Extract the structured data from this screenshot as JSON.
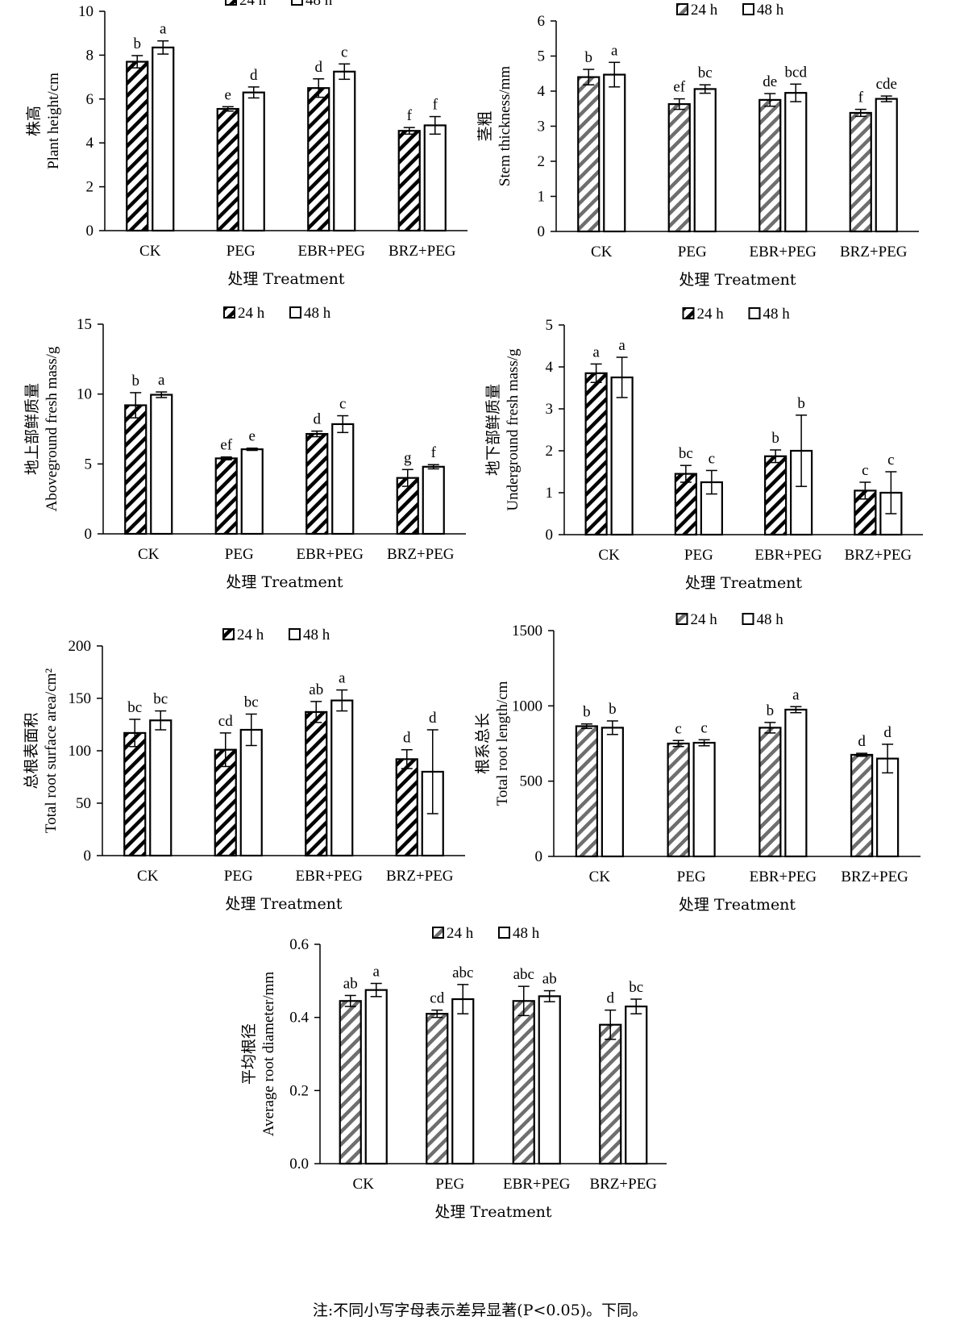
{
  "legend": {
    "series1": "24 h",
    "series2": "48 h"
  },
  "colors": {
    "bar1_stroke": "#000000",
    "bar1_stroke_gray": "#6e6e6e",
    "bar2_fill": "#ffffff"
  },
  "note": "注:不同小写字母表示差异显著(P<0.05)。下同。",
  "chart_data": [
    {
      "id": "plant-height",
      "type": "bar",
      "title": "",
      "ylabel_cn": "株高",
      "ylabel_en": "Plant height/cm",
      "xlabel": "处理 Treatment",
      "categories": [
        "CK",
        "PEG",
        "EBR+PEG",
        "BRZ+PEG"
      ],
      "ylim": [
        0,
        10
      ],
      "yticks": [
        "0",
        "2",
        "4",
        "6",
        "8",
        "10"
      ],
      "hatch": "black",
      "series": [
        {
          "name": "24 h",
          "values": [
            7.7,
            5.55,
            6.5,
            4.55
          ],
          "errors": [
            0.28,
            0.1,
            0.42,
            0.15
          ],
          "labels": [
            "b",
            "e",
            "d",
            "f"
          ]
        },
        {
          "name": "48 h",
          "values": [
            8.35,
            6.3,
            7.25,
            4.8
          ],
          "errors": [
            0.3,
            0.25,
            0.35,
            0.4
          ],
          "labels": [
            "a",
            "d",
            "c",
            "f"
          ]
        }
      ]
    },
    {
      "id": "stem-thickness",
      "type": "bar",
      "title": "",
      "ylabel_cn": "茎粗",
      "ylabel_en": "Stem thickness/mm",
      "xlabel": "处理 Treatment",
      "categories": [
        "CK",
        "PEG",
        "EBR+PEG",
        "BRZ+PEG"
      ],
      "ylim": [
        0,
        6
      ],
      "yticks": [
        "0",
        "1",
        "2",
        "3",
        "4",
        "5",
        "6"
      ],
      "hatch": "gray",
      "series": [
        {
          "name": "24 h",
          "values": [
            4.4,
            3.63,
            3.75,
            3.38
          ],
          "errors": [
            0.22,
            0.15,
            0.18,
            0.1
          ],
          "labels": [
            "b",
            "ef",
            "de",
            "f"
          ]
        },
        {
          "name": "48 h",
          "values": [
            4.47,
            4.06,
            3.95,
            3.78
          ],
          "errors": [
            0.35,
            0.12,
            0.25,
            0.08
          ],
          "labels": [
            "a",
            "bc",
            "bcd",
            "cde"
          ]
        }
      ]
    },
    {
      "id": "aboveground-fresh-mass",
      "type": "bar",
      "title": "",
      "ylabel_cn": "地上部鲜质量",
      "ylabel_en": "Aboveground fresh mass/g",
      "xlabel": "处理 Treatment",
      "categories": [
        "CK",
        "PEG",
        "EBR+PEG",
        "BRZ+PEG"
      ],
      "ylim": [
        0,
        15
      ],
      "yticks": [
        "0",
        "5",
        "10",
        "15"
      ],
      "hatch": "black",
      "series": [
        {
          "name": "24 h",
          "values": [
            9.2,
            5.4,
            7.15,
            4.0
          ],
          "errors": [
            0.9,
            0.1,
            0.2,
            0.6
          ],
          "labels": [
            "b",
            "ef",
            "d",
            "g"
          ]
        },
        {
          "name": "48 h",
          "values": [
            9.95,
            6.05,
            7.85,
            4.8
          ],
          "errors": [
            0.2,
            0.08,
            0.6,
            0.15
          ],
          "labels": [
            "a",
            "e",
            "c",
            "f"
          ]
        }
      ]
    },
    {
      "id": "underground-fresh-mass",
      "type": "bar",
      "title": "",
      "ylabel_cn": "地下部鲜质量",
      "ylabel_en": "Underground fresh mass/g",
      "xlabel": "处理 Treatment",
      "categories": [
        "CK",
        "PEG",
        "EBR+PEG",
        "BRZ+PEG"
      ],
      "ylim": [
        0,
        5
      ],
      "yticks": [
        "0",
        "1",
        "2",
        "3",
        "4",
        "5"
      ],
      "hatch": "black",
      "series": [
        {
          "name": "24 h",
          "values": [
            3.85,
            1.45,
            1.87,
            1.05
          ],
          "errors": [
            0.22,
            0.2,
            0.15,
            0.2
          ],
          "labels": [
            "a",
            "bc",
            "b",
            "c"
          ]
        },
        {
          "name": "48 h",
          "values": [
            3.75,
            1.25,
            2.0,
            1.0
          ],
          "errors": [
            0.48,
            0.28,
            0.85,
            0.5
          ],
          "labels": [
            "a",
            "c",
            "b",
            "c"
          ]
        }
      ]
    },
    {
      "id": "total-root-surface-area",
      "type": "bar",
      "title": "",
      "ylabel_cn": "总根表面积",
      "ylabel_en": "Total root surface area/cm²",
      "xlabel": "处理 Treatment",
      "categories": [
        "CK",
        "PEG",
        "EBR+PEG",
        "BRZ+PEG"
      ],
      "ylim": [
        0,
        200
      ],
      "yticks": [
        "0",
        "50",
        "100",
        "150",
        "200"
      ],
      "hatch": "black",
      "series": [
        {
          "name": "24 h",
          "values": [
            117,
            101,
            137,
            92
          ],
          "errors": [
            13,
            16,
            10,
            9
          ],
          "labels": [
            "bc",
            "cd",
            "ab",
            "d"
          ]
        },
        {
          "name": "48 h",
          "values": [
            129,
            120,
            148,
            80
          ],
          "errors": [
            9,
            15,
            10,
            40
          ],
          "labels": [
            "bc",
            "bc",
            "a",
            "d"
          ]
        }
      ]
    },
    {
      "id": "total-root-length",
      "type": "bar",
      "title": "",
      "ylabel_cn": "根系总长",
      "ylabel_en": "Total root length/cm",
      "xlabel": "处理 Treatment",
      "categories": [
        "CK",
        "PEG",
        "EBR+PEG",
        "BRZ+PEG"
      ],
      "ylim": [
        0,
        1500
      ],
      "yticks": [
        "0",
        "500",
        "1000",
        "1500"
      ],
      "hatch": "gray",
      "series": [
        {
          "name": "24 h",
          "values": [
            865,
            750,
            855,
            675
          ],
          "errors": [
            15,
            20,
            35,
            10
          ],
          "labels": [
            "b",
            "c",
            "b",
            "d"
          ]
        },
        {
          "name": "48 h",
          "values": [
            855,
            755,
            975,
            650
          ],
          "errors": [
            45,
            20,
            20,
            95
          ],
          "labels": [
            "b",
            "c",
            "a",
            "d"
          ]
        }
      ]
    },
    {
      "id": "average-root-diameter",
      "type": "bar",
      "title": "",
      "ylabel_cn": "平均根径",
      "ylabel_en": "Average root diameter/mm",
      "xlabel": "处理 Treatment",
      "categories": [
        "CK",
        "PEG",
        "EBR+PEG",
        "BRZ+PEG"
      ],
      "ylim": [
        0,
        0.6
      ],
      "yticks": [
        "0.0",
        "0.2",
        "0.4",
        "0.6"
      ],
      "hatch": "gray",
      "series": [
        {
          "name": "24 h",
          "values": [
            0.445,
            0.41,
            0.445,
            0.38
          ],
          "errors": [
            0.015,
            0.01,
            0.04,
            0.04
          ],
          "labels": [
            "ab",
            "cd",
            "abc",
            "d"
          ]
        },
        {
          "name": "48 h",
          "values": [
            0.475,
            0.45,
            0.458,
            0.43
          ],
          "errors": [
            0.018,
            0.04,
            0.015,
            0.02
          ],
          "labels": [
            "a",
            "abc",
            "ab",
            "bc"
          ]
        }
      ]
    }
  ]
}
